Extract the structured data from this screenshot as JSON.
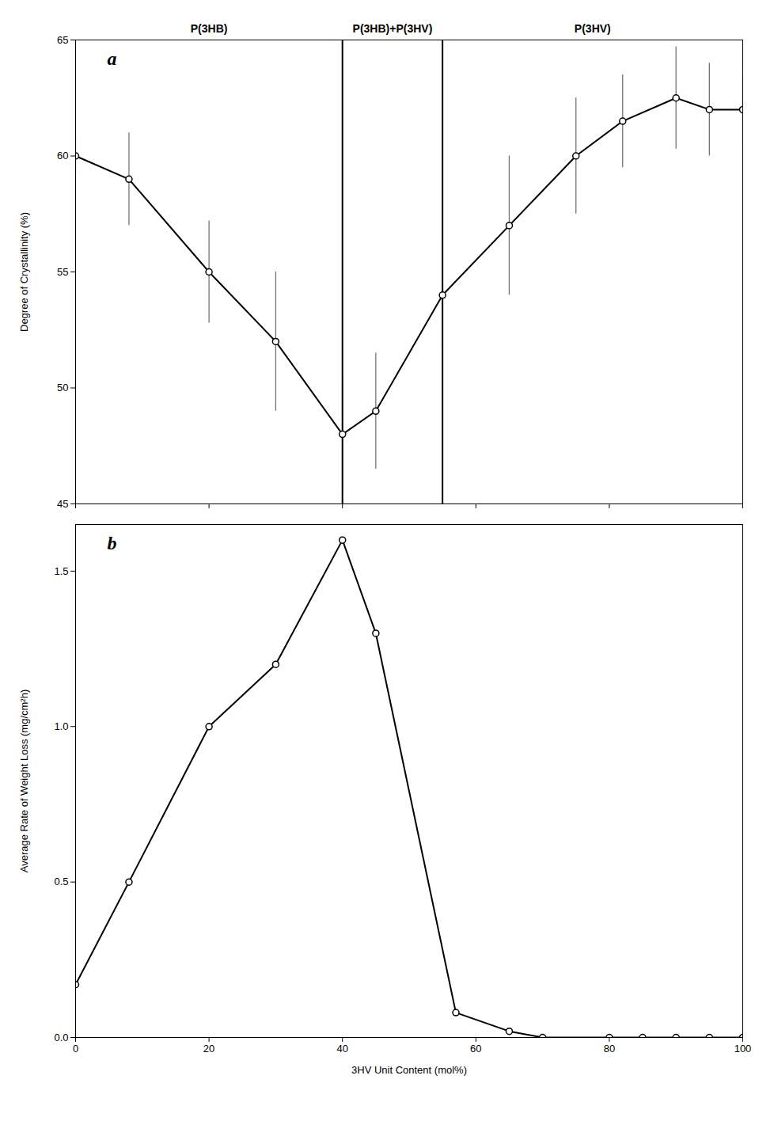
{
  "chart_data": [
    {
      "type": "line",
      "x": [
        0,
        8,
        20,
        30,
        40,
        45,
        55,
        65,
        75,
        82,
        90,
        95,
        100
      ],
      "series": [
        {
          "values": [
            60,
            59,
            55,
            52,
            48,
            49,
            54,
            57,
            60,
            61.5,
            62.5,
            62,
            62
          ],
          "yerr": [
            0.8,
            2.0,
            2.2,
            3.0,
            2.5,
            2.5,
            2.5,
            3.0,
            2.5,
            2.0,
            2.2,
            2.0,
            1.5
          ],
          "color": "black",
          "marker": "circle",
          "line_style": "solid"
        }
      ],
      "ylabel": "Degree of Crystallinity (%)",
      "xlim": [
        0,
        100
      ],
      "xticks": [
        0,
        20,
        40,
        60,
        80,
        100
      ],
      "ylim": [
        45,
        65
      ],
      "yticks": [
        45,
        50,
        55,
        60,
        65
      ],
      "vlines": [
        40,
        55
      ],
      "annotations": [
        {
          "text": "a"
        },
        {
          "text": "P(3HB)",
          "x": 20
        },
        {
          "text": "P(3HB)+P(3HV)",
          "x": 47.5
        },
        {
          "text": "P(3HV)",
          "x": 77.5
        }
      ],
      "tick_labels": "y",
      "grid": false
    },
    {
      "type": "line",
      "x": [
        0,
        8,
        20,
        30,
        40,
        45,
        57,
        65,
        70,
        80,
        85,
        90,
        95,
        100
      ],
      "series": [
        {
          "values": [
            0.17,
            0.5,
            1.0,
            1.2,
            1.6,
            1.3,
            0.08,
            0.02,
            0.0,
            0.0,
            0.0,
            0.0,
            0.0,
            0.0
          ],
          "color": "black",
          "marker": "circle",
          "line_style": "solid"
        }
      ],
      "xlabel": "3HV Unit Content (mol%)",
      "ylabel": "Average Rate of Weight Loss (mg/cm²h)",
      "xlim": [
        0,
        100
      ],
      "xticks": [
        0,
        20,
        40,
        60,
        80,
        100
      ],
      "ylim": [
        0,
        1.65
      ],
      "yticks": [
        {
          "value": 0.0,
          "label": "0.0"
        },
        0.5,
        {
          "value": 1.0,
          "label": "1.0"
        },
        1.5
      ],
      "annotations": [
        {
          "text": "b"
        }
      ],
      "grid": false
    }
  ]
}
